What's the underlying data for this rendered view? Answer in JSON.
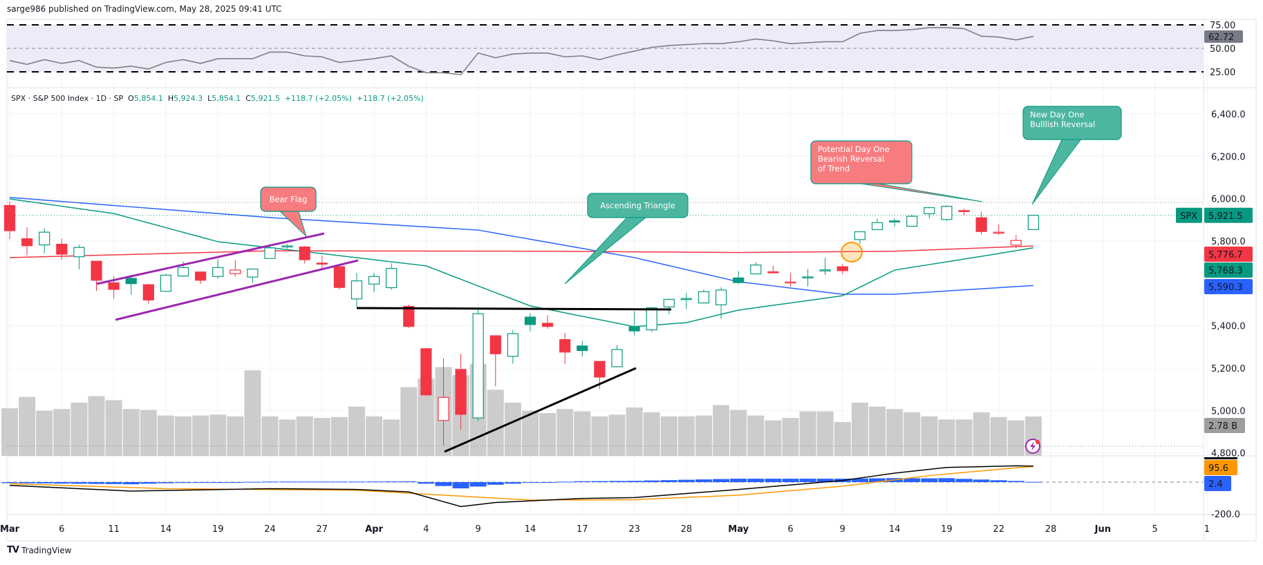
{
  "header": {
    "published": "sarge986 published on TradingView.com, May 28, 2025 09:41 UTC"
  },
  "legend": {
    "symbol": "SPX · S&P 500 Index · 1D · SP",
    "open_label": "O",
    "open": "5,854.1",
    "high_label": "H",
    "high": "5,924.3",
    "low_label": "L",
    "low": "5,854.1",
    "close_label": "C",
    "close": "5,921.5",
    "change1": "+118.7 (+2.05%)",
    "change2": "+118.7 (+2.05%)"
  },
  "footer": {
    "brand": "TradingView"
  },
  "colors": {
    "up": "#089981",
    "down": "#F23645",
    "ma_red": "#F23645",
    "ma_blue": "#2962FF",
    "ma_green": "#089981",
    "rsi_line": "#7E7E86",
    "rsi_band": "#EEEBF8",
    "volume": "#CCCCCC",
    "macd": "#000000",
    "signal": "#FF9800",
    "hist": "#2962FF",
    "flag": "#9C27B0",
    "callout_green": "#4DB6A0",
    "callout_red": "#F77C80"
  },
  "chart_data": {
    "type": "candlestick",
    "symbol": "SPX",
    "timeframe": "1D",
    "price_axis": {
      "ticks": [
        "6,400.0",
        "6,200.0",
        "6,000.0",
        "5,800.0",
        "5,400.0",
        "5,200.0",
        "5,000.0",
        "4,800.0"
      ],
      "range": [
        4800,
        6400
      ]
    },
    "rsi_axis": {
      "ticks": [
        "75.00",
        "50.00",
        "25.00"
      ]
    },
    "macd_axis": {
      "ticks": [
        "-200.0"
      ]
    },
    "time_axis": [
      {
        "label": "Mar",
        "date": "2025-03-03",
        "bold": true
      },
      {
        "label": "6",
        "date": "2025-03-06"
      },
      {
        "label": "11",
        "date": "2025-03-11"
      },
      {
        "label": "14",
        "date": "2025-03-14"
      },
      {
        "label": "19",
        "date": "2025-03-19"
      },
      {
        "label": "24",
        "date": "2025-03-24"
      },
      {
        "label": "27",
        "date": "2025-03-27"
      },
      {
        "label": "Apr",
        "date": "2025-04-01",
        "bold": true
      },
      {
        "label": "4",
        "date": "2025-04-04"
      },
      {
        "label": "9",
        "date": "2025-04-09"
      },
      {
        "label": "14",
        "date": "2025-04-14"
      },
      {
        "label": "17",
        "date": "2025-04-17"
      },
      {
        "label": "23",
        "date": "2025-04-23"
      },
      {
        "label": "28",
        "date": "2025-04-28"
      },
      {
        "label": "May",
        "date": "2025-05-01",
        "bold": true
      },
      {
        "label": "6",
        "date": "2025-05-06"
      },
      {
        "label": "9",
        "date": "2025-05-09"
      },
      {
        "label": "14",
        "date": "2025-05-14"
      },
      {
        "label": "19",
        "date": "2025-05-19"
      },
      {
        "label": "22",
        "date": "2025-05-22"
      },
      {
        "label": "28",
        "date": "2025-05-28"
      },
      {
        "label": "Jun",
        "date": "2025-06-02",
        "bold": true
      },
      {
        "label": "5",
        "date": "2025-06-05"
      },
      {
        "label": "1",
        "date": "2025-06-10"
      }
    ],
    "candles": [
      [
        "2025-03-03",
        5968,
        5986,
        5810,
        5849
      ],
      [
        "2025-03-04",
        5811,
        5865,
        5732,
        5778
      ],
      [
        "2025-03-05",
        5782,
        5860,
        5742,
        5842
      ],
      [
        "2025-03-06",
        5785,
        5812,
        5711,
        5738
      ],
      [
        "2025-03-07",
        5726,
        5783,
        5666,
        5770
      ],
      [
        "2025-03-10",
        5705,
        5705,
        5564,
        5615
      ],
      [
        "2025-03-11",
        5603,
        5636,
        5528,
        5572
      ],
      [
        "2025-03-12",
        5624,
        5642,
        5546,
        5599
      ],
      [
        "2025-03-13",
        5594,
        5598,
        5505,
        5522
      ],
      [
        "2025-03-14",
        5563,
        5645,
        5563,
        5639
      ],
      [
        "2025-03-17",
        5635,
        5703,
        5631,
        5675
      ],
      [
        "2025-03-18",
        5654,
        5654,
        5597,
        5615
      ],
      [
        "2025-03-19",
        5633,
        5715,
        5622,
        5675
      ],
      [
        "2025-03-20",
        5646,
        5711,
        5632,
        5663
      ],
      [
        "2025-03-21",
        5630,
        5670,
        5603,
        5668
      ],
      [
        "2025-03-24",
        5718,
        5775,
        5718,
        5768
      ],
      [
        "2025-03-25",
        5775,
        5786,
        5765,
        5777
      ],
      [
        "2025-03-26",
        5772,
        5777,
        5694,
        5712
      ],
      [
        "2025-03-27",
        5696,
        5732,
        5670,
        5693
      ],
      [
        "2025-03-28",
        5679,
        5685,
        5572,
        5581
      ],
      [
        "2025-03-31",
        5527,
        5650,
        5489,
        5612
      ],
      [
        "2025-04-01",
        5597,
        5650,
        5558,
        5633
      ],
      [
        "2025-04-02",
        5580,
        5695,
        5571,
        5671
      ],
      [
        "2025-04-03",
        5492,
        5500,
        5390,
        5397
      ],
      [
        "2025-04-04",
        5292,
        5292,
        5069,
        5074
      ],
      [
        "2025-04-07",
        4953,
        5246,
        4835,
        5062
      ],
      [
        "2025-04-08",
        5194,
        5267,
        4910,
        4982
      ],
      [
        "2025-04-09",
        4965,
        5481,
        4950,
        5457
      ],
      [
        "2025-04-10",
        5353,
        5353,
        5115,
        5268
      ],
      [
        "2025-04-11",
        5256,
        5381,
        5221,
        5363
      ],
      [
        "2025-04-14",
        5441,
        5460,
        5374,
        5406
      ],
      [
        "2025-04-15",
        5412,
        5450,
        5386,
        5397
      ],
      [
        "2025-04-16",
        5335,
        5367,
        5220,
        5276
      ],
      [
        "2025-04-17",
        5305,
        5328,
        5255,
        5283
      ],
      [
        "2025-04-21",
        5232,
        5232,
        5101,
        5158
      ],
      [
        "2025-04-22",
        5207,
        5309,
        5207,
        5288
      ],
      [
        "2025-04-23",
        5395,
        5469,
        5356,
        5376
      ],
      [
        "2025-04-24",
        5381,
        5489,
        5371,
        5485
      ],
      [
        "2025-04-25",
        5489,
        5528,
        5455,
        5525
      ],
      [
        "2025-04-28",
        5529,
        5554,
        5479,
        5529
      ],
      [
        "2025-04-29",
        5508,
        5571,
        5505,
        5561
      ],
      [
        "2025-04-30",
        5499,
        5581,
        5433,
        5569
      ],
      [
        "2025-05-01",
        5626,
        5658,
        5597,
        5604
      ],
      [
        "2025-05-02",
        5645,
        5700,
        5644,
        5687
      ],
      [
        "2025-05-05",
        5655,
        5683,
        5650,
        5650
      ],
      [
        "2025-05-06",
        5605,
        5649,
        5586,
        5607
      ],
      [
        "2025-05-07",
        5626,
        5668,
        5586,
        5631
      ],
      [
        "2025-05-08",
        5663,
        5721,
        5640,
        5664
      ],
      [
        "2025-05-09",
        5679,
        5691,
        5644,
        5660
      ],
      [
        "2025-05-12",
        5807,
        5845,
        5786,
        5844
      ],
      [
        "2025-05-13",
        5854,
        5906,
        5853,
        5887
      ],
      [
        "2025-05-14",
        5895,
        5906,
        5868,
        5893
      ],
      [
        "2025-05-15",
        5870,
        5924,
        5868,
        5917
      ],
      [
        "2025-05-16",
        5929,
        5958,
        5907,
        5958
      ],
      [
        "2025-05-19",
        5902,
        5969,
        5895,
        5964
      ],
      [
        "2025-05-20",
        5944,
        5953,
        5919,
        5941
      ],
      [
        "2025-05-21",
        5910,
        5939,
        5830,
        5845
      ],
      [
        "2025-05-22",
        5841,
        5878,
        5829,
        5842
      ],
      [
        "2025-05-23",
        5781,
        5829,
        5767,
        5803
      ],
      [
        "2025-05-27",
        5854.1,
        5924.3,
        5854.1,
        5921.5
      ]
    ],
    "volume_billions": [
      3.36,
      4.16,
      3.19,
      3.31,
      3.76,
      4.22,
      3.93,
      3.31,
      3.25,
      2.85,
      2.79,
      2.85,
      2.91,
      2.79,
      6.04,
      2.79,
      2.57,
      2.79,
      2.68,
      2.74,
      3.48,
      2.79,
      2.57,
      4.85,
      5.47,
      6.27,
      5.7,
      6.5,
      4.67,
      3.76,
      3.19,
      3.02,
      3.31,
      3.14,
      2.79,
      2.91,
      3.42,
      3.08,
      2.79,
      2.79,
      2.85,
      3.59,
      3.25,
      2.85,
      2.51,
      2.68,
      3.14,
      3.14,
      2.39,
      3.76,
      3.48,
      3.31,
      3.08,
      2.79,
      2.57,
      2.57,
      3.08,
      2.74,
      2.51,
      2.78
    ],
    "moving_averages": [
      {
        "color": "#F23645",
        "last": "5,776.7",
        "points": [
          [
            "2025-03-03",
            5722
          ],
          [
            "2025-03-24",
            5754
          ],
          [
            "2025-04-15",
            5752
          ],
          [
            "2025-05-01",
            5746
          ],
          [
            "2025-05-14",
            5752
          ],
          [
            "2025-05-27",
            5776.7
          ]
        ]
      },
      {
        "color": "#2962FF",
        "last": "5,590.3",
        "points": [
          [
            "2025-03-03",
            6006
          ],
          [
            "2025-03-24",
            5911
          ],
          [
            "2025-04-09",
            5852
          ],
          [
            "2025-04-23",
            5722
          ],
          [
            "2025-05-01",
            5608
          ],
          [
            "2025-05-09",
            5549
          ],
          [
            "2025-05-14",
            5549
          ],
          [
            "2025-05-27",
            5590.3
          ]
        ]
      },
      {
        "color": "#089981",
        "last": "5,768.3",
        "points": [
          [
            "2025-03-03",
            5999
          ],
          [
            "2025-03-11",
            5930
          ],
          [
            "2025-03-19",
            5797
          ],
          [
            "2025-03-27",
            5741
          ],
          [
            "2025-04-01",
            5712
          ],
          [
            "2025-04-04",
            5683
          ],
          [
            "2025-04-09",
            5588
          ],
          [
            "2025-04-14",
            5494
          ],
          [
            "2025-04-23",
            5396
          ],
          [
            "2025-04-28",
            5415
          ],
          [
            "2025-05-01",
            5474
          ],
          [
            "2025-05-09",
            5542
          ],
          [
            "2025-05-14",
            5663
          ],
          [
            "2025-05-21",
            5728
          ],
          [
            "2025-05-27",
            5768.3
          ]
        ]
      }
    ],
    "rsi": {
      "last": "62.72",
      "bands": [
        25,
        50,
        75
      ],
      "values": [
        37,
        33,
        38,
        34,
        37,
        30,
        29,
        31,
        28,
        35,
        38,
        34,
        39,
        39,
        39,
        46,
        46,
        42,
        41,
        35,
        37,
        39,
        42,
        31,
        24,
        24,
        22,
        45,
        40,
        44,
        45,
        45,
        41,
        42,
        38,
        43,
        47,
        51,
        53,
        54,
        55,
        55,
        57,
        60,
        58,
        55,
        56,
        57,
        57,
        66,
        69,
        69,
        70,
        72,
        72,
        71,
        63,
        62,
        59,
        62.72
      ]
    },
    "macd": {
      "last_signal": "95.6",
      "last_hist": "2.4",
      "macd_points": [
        [
          "2025-03-03",
          -20
        ],
        [
          "2025-03-12",
          -55
        ],
        [
          "2025-03-24",
          -40
        ],
        [
          "2025-03-31",
          -45
        ],
        [
          "2025-04-03",
          -60
        ],
        [
          "2025-04-08",
          -150
        ],
        [
          "2025-04-10",
          -125
        ],
        [
          "2025-04-17",
          -100
        ],
        [
          "2025-04-23",
          -95
        ],
        [
          "2025-05-01",
          -45
        ],
        [
          "2025-05-09",
          10
        ],
        [
          "2025-05-14",
          55
        ],
        [
          "2025-05-19",
          90
        ],
        [
          "2025-05-23",
          100
        ],
        [
          "2025-05-27",
          98
        ]
      ],
      "signal_points": [
        [
          "2025-03-03",
          -10
        ],
        [
          "2025-03-14",
          -40
        ],
        [
          "2025-03-31",
          -50
        ],
        [
          "2025-04-07",
          -80
        ],
        [
          "2025-04-14",
          -110
        ],
        [
          "2025-04-23",
          -108
        ],
        [
          "2025-05-01",
          -80
        ],
        [
          "2025-05-09",
          -25
        ],
        [
          "2025-05-16",
          40
        ],
        [
          "2025-05-23",
          88
        ],
        [
          "2025-05-27",
          95.6
        ]
      ]
    },
    "annotations": [
      {
        "text": [
          "Bear Flag"
        ],
        "style": "red"
      },
      {
        "text": [
          "Ascending Triangle"
        ],
        "style": "green"
      },
      {
        "text": [
          "Potential Day One",
          "Bearish Reversal",
          "of Trend"
        ],
        "style": "red"
      },
      {
        "text": [
          "New Day One",
          "Bulllish Reversal"
        ],
        "style": "green"
      }
    ],
    "price_labels": {
      "symbol": "SPX",
      "last": "5,921.5",
      "volume": "2.78 B"
    }
  }
}
